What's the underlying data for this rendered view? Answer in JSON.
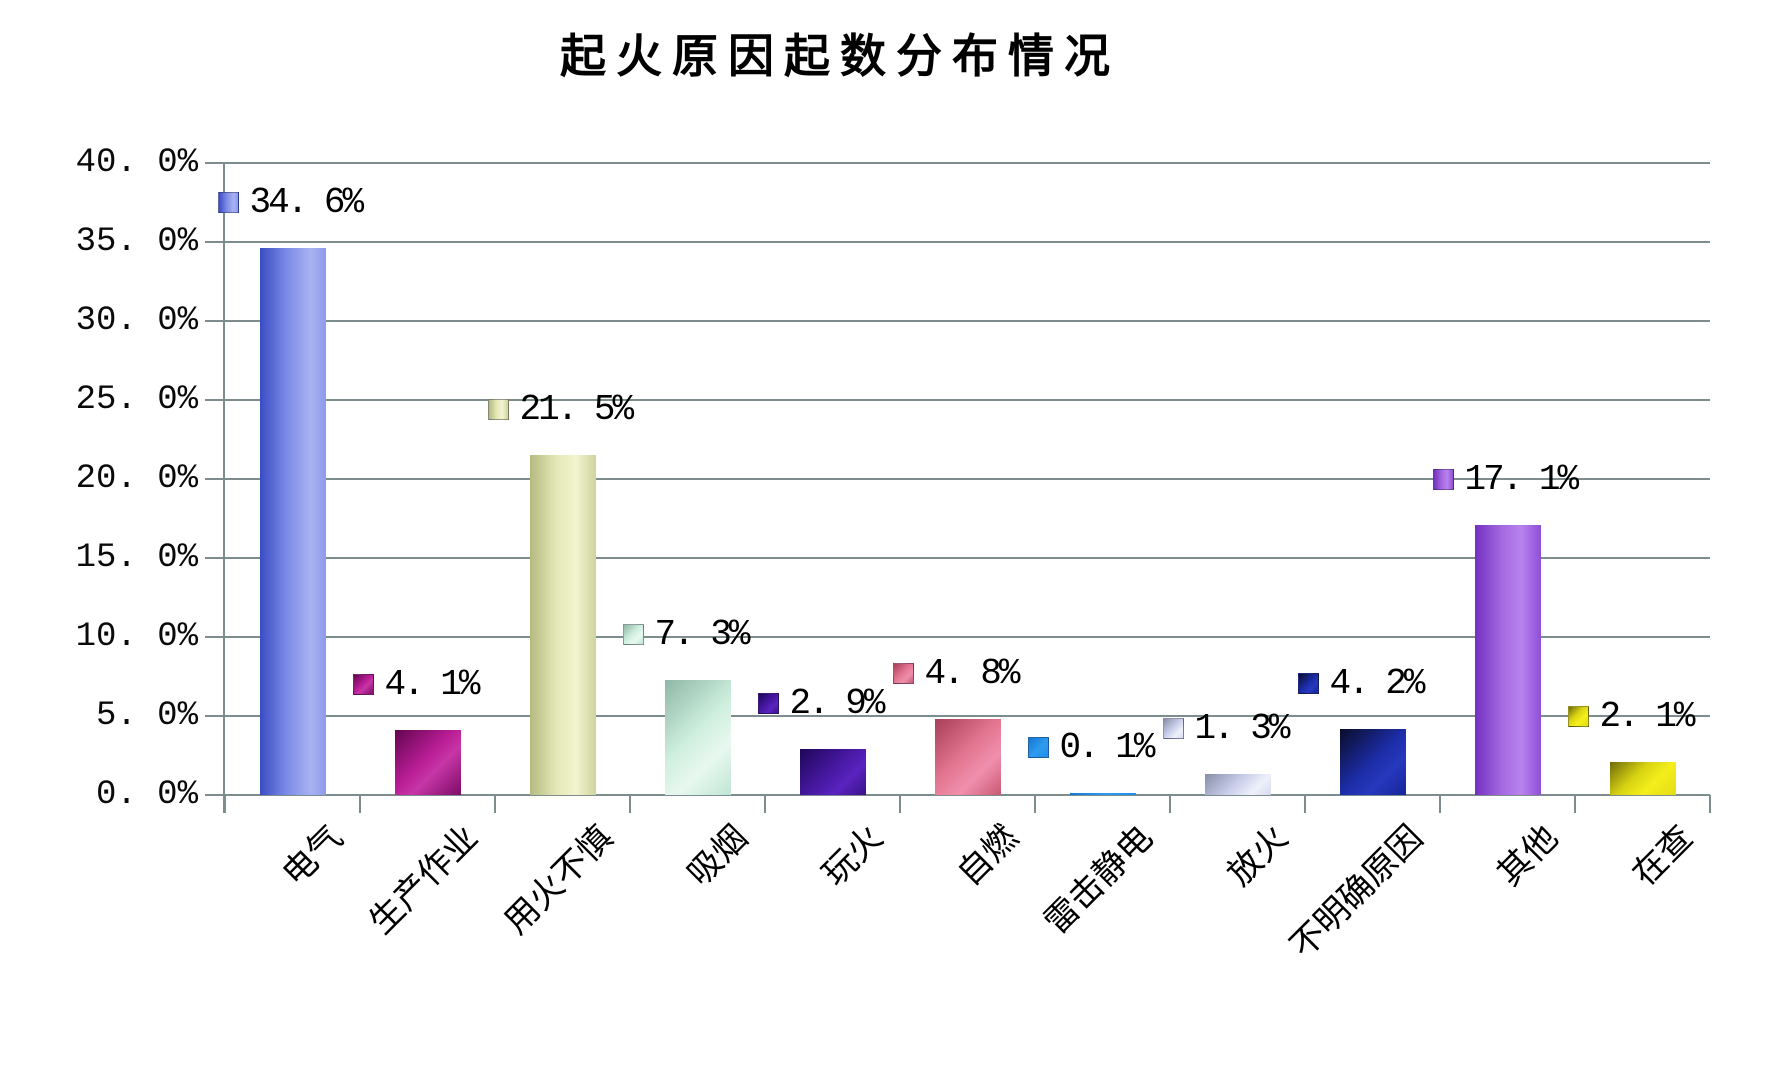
{
  "chart_data": {
    "type": "bar",
    "title": "起火原因起数分布情况",
    "categories": [
      "电气",
      "生产作业",
      "用火不慎",
      "吸烟",
      "玩火",
      "自燃",
      "雷击静电",
      "放火",
      "不明确原因",
      "其他",
      "在查"
    ],
    "values": [
      34.6,
      4.1,
      21.5,
      7.3,
      2.9,
      4.8,
      0.1,
      1.3,
      4.2,
      17.1,
      2.1
    ],
    "data_labels": [
      "34. 6%",
      "4. 1%",
      "21. 5%",
      "7. 3%",
      "2. 9%",
      "4. 8%",
      "0. 1%",
      "1. 3%",
      "4. 2%",
      "17. 1%",
      "2. 1%"
    ],
    "xlabel": "",
    "ylabel": "",
    "ylim": [
      0,
      40
    ],
    "grid": true,
    "legend_position": "none",
    "y_axis": {
      "min": 0,
      "max": 40,
      "step": 5,
      "tick_labels": [
        "40. 0%",
        "35. 0%",
        "30. 0%",
        "25. 0%",
        "20. 0%",
        "15. 0%",
        "10. 0%",
        "5. 0%",
        "0. 0%"
      ]
    },
    "colors": {
      "background": "#ffffff",
      "axis_and_grid": "#7d8c8c",
      "text": "#000000",
      "bar_main": [
        "#7d8ce4",
        "#b91d96",
        "#e4e8b6",
        "#cdeedd",
        "#45179e",
        "#e2758f",
        "#1e8ee8",
        "#c6cbe8",
        "#1c2da8",
        "#a468e0",
        "#f4ee1c"
      ]
    },
    "bar_gradients": [
      "linear-gradient(90deg, #3a4cc4 0%, #7c8ae6 40%, #a8b3f2 78%, #8e99ea 100%)",
      "linear-gradient(135deg, #62064f 0%, #b91d96 45%, #c636a6 62%, #7c0c66 100%)",
      "linear-gradient(90deg, #b4ba80 0%, #e4e8b6 40%, #f2f4cf 70%, #cfd49e 100%)",
      "linear-gradient(135deg, #8eb6a6 0%, #cdeedd 45%, #e8f8f0 70%, #bfe6d4 100%)",
      "linear-gradient(135deg, #1e0758 0%, #45179e 45%, #5a23c0 70%, #3a1288 100%)",
      "linear-gradient(135deg, #a83e58 0%, #e2758f 45%, #f08fae 70%, #c75872 100%)",
      "linear-gradient(135deg, #1577d0 0%, #2e9bf0 55%, #1e8ee8 100%)",
      "linear-gradient(135deg, #878da6 0%, #c6cbe8 45%, #eef0fa 75%, #d6daf0 100%)",
      "linear-gradient(135deg, #0a0d28 0%, #1c2da8 50%, #2638bd 70%, #17259a 100%)",
      "linear-gradient(90deg, #7330c0 0%, #a468e0 40%, #b983ee 70%, #8f4fd6 100%)",
      "linear-gradient(135deg, #6e6a0a 0%, #d8d312 40%, #f4ee1c 65%, #e3dd16 100%)"
    ]
  }
}
